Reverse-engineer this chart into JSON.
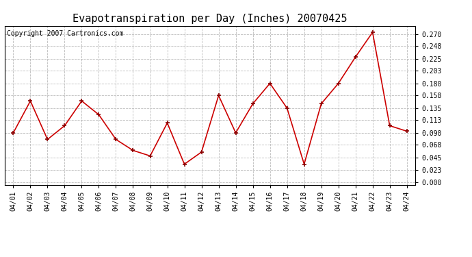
{
  "title": "Evapotranspiration per Day (Inches) 20070425",
  "copyright_text": "Copyright 2007 Cartronics.com",
  "x_labels": [
    "04/01",
    "04/02",
    "04/03",
    "04/04",
    "04/05",
    "04/06",
    "04/07",
    "04/08",
    "04/09",
    "04/10",
    "04/11",
    "04/12",
    "04/13",
    "04/14",
    "04/15",
    "04/16",
    "04/17",
    "04/18",
    "04/19",
    "04/20",
    "04/21",
    "04/22",
    "04/23",
    "04/24"
  ],
  "y_values": [
    0.09,
    0.148,
    0.078,
    0.103,
    0.148,
    0.123,
    0.078,
    0.058,
    0.048,
    0.108,
    0.033,
    0.055,
    0.158,
    0.09,
    0.143,
    0.18,
    0.135,
    0.033,
    0.143,
    0.18,
    0.228,
    0.273,
    0.103,
    0.093
  ],
  "y_ticks": [
    0.0,
    0.023,
    0.045,
    0.068,
    0.09,
    0.113,
    0.135,
    0.158,
    0.18,
    0.203,
    0.225,
    0.248,
    0.27
  ],
  "line_color": "#cc0000",
  "marker_color": "#880000",
  "background_color": "#ffffff",
  "grid_color": "#bbbbbb",
  "title_fontsize": 11,
  "copyright_fontsize": 7,
  "tick_fontsize": 7
}
